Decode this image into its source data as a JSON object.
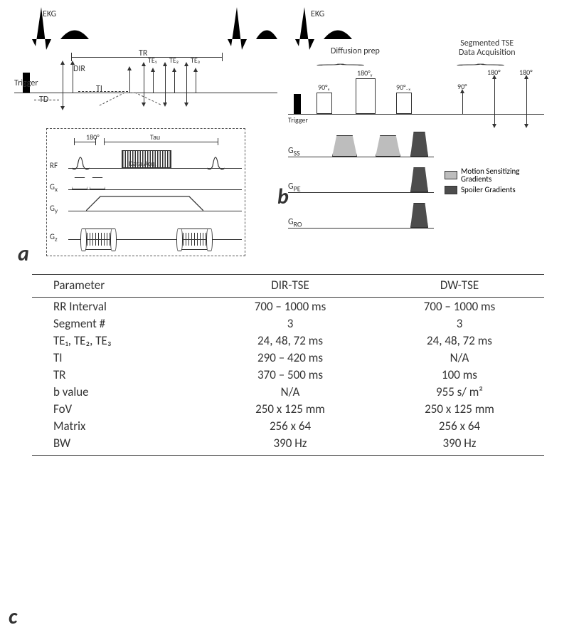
{
  "colors": {
    "line": "#333333",
    "bg": "#ffffff",
    "motion_grad": "#bdbdbd",
    "spoiler_grad": "#4d4d4d"
  },
  "panelA": {
    "ekg_label": "EKG",
    "trigger_label": "Trigger",
    "td_label": "TD",
    "dir_label": "DIR",
    "ti_label": "TI",
    "tr_label": "TR",
    "te1": "TE₁",
    "te2": "TE₂",
    "te3": "TE₃",
    "panel_label": "a",
    "inset": {
      "rf_label": "RF",
      "gx_label": "Gₓ",
      "gy_label": "Gᵧ",
      "gz_label": "G_z",
      "angle": "180°",
      "tau": "Tau",
      "data_acq": "Data Acq."
    }
  },
  "panelB": {
    "ekg_label": "EKG",
    "trigger_label": "Trigger",
    "diff_prep": "Diffusion prep",
    "seg_tse": "Segmented TSE\nData Acquisition",
    "p90x": "90°ₓ",
    "p180y": "180°ᵧ",
    "p90mx": "90°₋ₓ",
    "p90e": "90°",
    "p180e1": "180°",
    "p180e2": "180°",
    "gss": "Gss",
    "gpe": "G",
    "gpe_sub": "PE",
    "gro": "G",
    "gro_sub": "RO",
    "legend_motion": "Motion Sensitizing\nGradients",
    "legend_spoiler": "Spoiler Gradients",
    "panel_label": "b"
  },
  "tableC": {
    "panel_label": "c",
    "columns": [
      "Parameter",
      "DIR-TSE",
      "DW-TSE"
    ],
    "rows": [
      [
        "RR Interval",
        "700 – 1000 ms",
        "700 – 1000 ms"
      ],
      [
        "Segment #",
        "3",
        "3"
      ],
      [
        "TE₁, TE₂, TE₃",
        "24, 48, 72 ms",
        "24, 48, 72 ms"
      ],
      [
        "TI",
        "290 – 420 ms",
        "N/A"
      ],
      [
        "TR",
        "370 – 500 ms",
        "100 ms"
      ],
      [
        "b value",
        "N/A",
        "955 s/ m²"
      ],
      [
        "FoV",
        "250 x 125 mm",
        "250 x 125 mm"
      ],
      [
        "Matrix",
        "256 x 64",
        "256 x 64"
      ],
      [
        "BW",
        "390 Hz",
        "390 Hz"
      ]
    ]
  }
}
